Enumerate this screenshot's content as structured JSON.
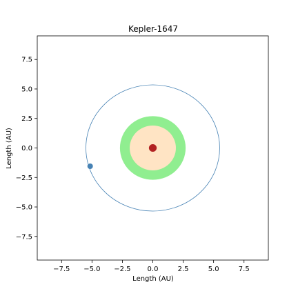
{
  "chart_data": {
    "type": "scatter",
    "title": "Kepler-1647",
    "xlabel": "Length (AU)",
    "ylabel": "Length (AU)",
    "xlim": [
      -9.5,
      9.5
    ],
    "ylim": [
      -9.5,
      9.5
    ],
    "xticks": [
      -7.5,
      -5.0,
      -2.5,
      0.0,
      2.5,
      5.0,
      7.5
    ],
    "yticks": [
      -7.5,
      -5.0,
      -2.5,
      0.0,
      2.5,
      5.0,
      7.5
    ],
    "xtick_labels": [
      "−7.5",
      "−5.0",
      "−2.5",
      "0.0",
      "2.5",
      "5.0",
      "7.5"
    ],
    "ytick_labels": [
      "−7.5",
      "−5.0",
      "−2.5",
      "0.0",
      "2.5",
      "5.0",
      "7.5"
    ],
    "grid": false,
    "outer_zone": {
      "radius": 2.7,
      "color": "#90ee90"
    },
    "inner_zone": {
      "radius": 1.9,
      "color": "#ffe4c4"
    },
    "star": {
      "x": 0.0,
      "y": 0.0,
      "radius": 0.32,
      "color": "#b22222"
    },
    "orbit": {
      "cx": 0.0,
      "cy": 0.0,
      "rx": 5.5,
      "ry": 5.35,
      "color": "#4682b4"
    },
    "planet": {
      "x": -5.15,
      "y": -1.55,
      "color": "#4682b4"
    }
  }
}
